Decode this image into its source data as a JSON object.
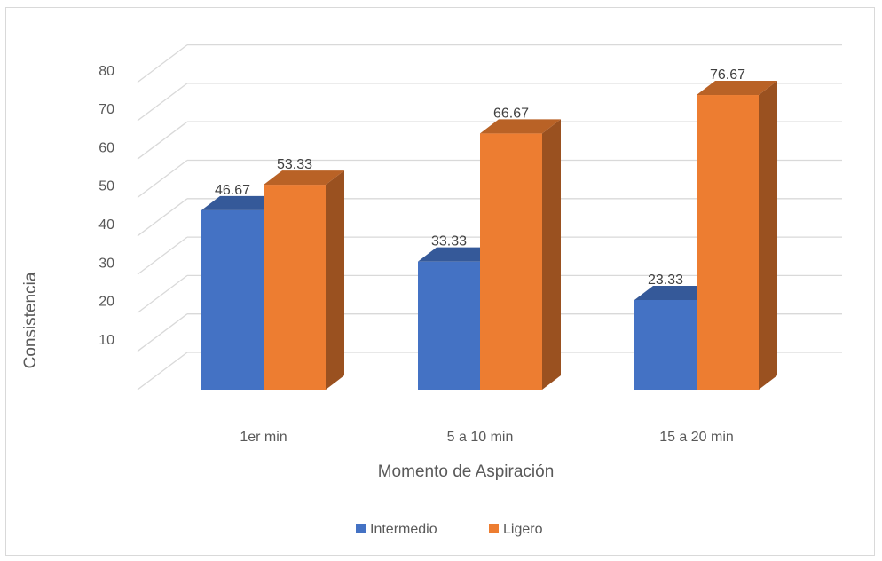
{
  "chart_data": {
    "type": "bar",
    "variant": "3d-clustered-column",
    "categories": [
      "1er min",
      "5 a 10 min",
      "15 a 20 min"
    ],
    "series": [
      {
        "name": "Intermedio",
        "values": [
          46.67,
          33.33,
          23.33
        ],
        "color": "#4472c4"
      },
      {
        "name": "Ligero",
        "values": [
          53.33,
          66.67,
          76.67
        ],
        "color": "#ed7d31"
      }
    ],
    "xlabel": "Momento de Aspiración",
    "ylabel": "Consistencia",
    "ylim": [
      0,
      80
    ],
    "yticks": [
      10,
      20,
      30,
      40,
      50,
      60,
      70,
      80
    ],
    "grid": true,
    "legend_position": "bottom"
  }
}
